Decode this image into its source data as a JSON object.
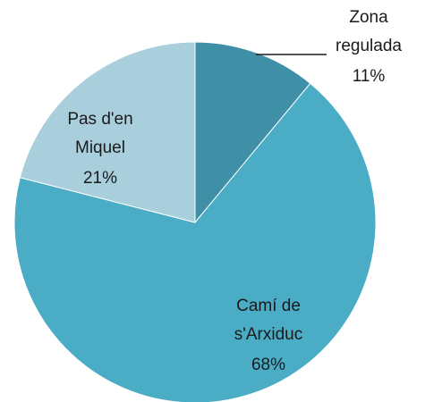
{
  "chart_data": {
    "type": "pie",
    "categories": [
      [
        "Zona",
        "regulada"
      ],
      [
        "Camí de",
        "s'Arxiduc"
      ],
      [
        "Pas d'en",
        "Miquel"
      ]
    ],
    "values": [
      11,
      68,
      21
    ],
    "value_labels": [
      "11%",
      "68%",
      "21%"
    ],
    "colors": [
      "#3f8fa6",
      "#4bacc6",
      "#a9cfdd"
    ]
  }
}
